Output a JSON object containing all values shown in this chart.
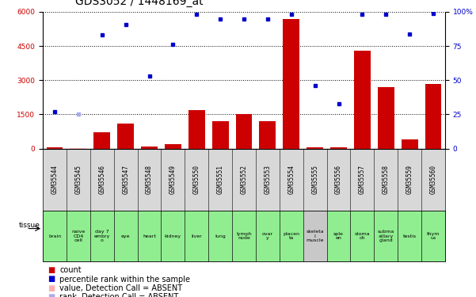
{
  "title": "GDS3052 / 1448169_at",
  "samples": [
    "GSM35544",
    "GSM35545",
    "GSM35546",
    "GSM35547",
    "GSM35548",
    "GSM35549",
    "GSM35550",
    "GSM35551",
    "GSM35552",
    "GSM35553",
    "GSM35554",
    "GSM35555",
    "GSM35556",
    "GSM35557",
    "GSM35558",
    "GSM35559",
    "GSM35560"
  ],
  "tissues": [
    "brain",
    "naive\nCD4\ncell",
    "day 7\nembry\no",
    "eye",
    "heart",
    "kidney",
    "liver",
    "lung",
    "lymph\nnode",
    "ovar\ny",
    "placen\nta",
    "skeleta\nl\nmuscle",
    "sple\nen",
    "stoma\nch",
    "subma\nxillary\ngland",
    "testis",
    "thym\nus"
  ],
  "tissue_colors": [
    "#90ee90",
    "#90ee90",
    "#90ee90",
    "#90ee90",
    "#90ee90",
    "#90ee90",
    "#90ee90",
    "#90ee90",
    "#90ee90",
    "#90ee90",
    "#90ee90",
    "#c8c8c8",
    "#90ee90",
    "#90ee90",
    "#90ee90",
    "#90ee90",
    "#90ee90"
  ],
  "count_values": [
    50,
    30,
    700,
    1100,
    100,
    200,
    1700,
    1200,
    1500,
    1200,
    5700,
    60,
    50,
    4300,
    2700,
    400,
    2850
  ],
  "rank_pct": [
    27,
    25,
    83,
    91,
    53,
    76,
    98,
    95,
    95,
    95,
    98,
    46,
    33,
    98,
    98,
    84,
    99
  ],
  "absent_count": [
    false,
    true,
    false,
    false,
    false,
    false,
    false,
    false,
    false,
    false,
    false,
    false,
    false,
    false,
    false,
    false,
    false
  ],
  "absent_rank": [
    false,
    true,
    false,
    false,
    false,
    false,
    false,
    false,
    false,
    false,
    false,
    false,
    false,
    false,
    false,
    false,
    false
  ],
  "ylim_left": [
    0,
    6000
  ],
  "ylim_right": [
    0,
    100
  ],
  "yticks_left": [
    0,
    1500,
    3000,
    4500,
    6000
  ],
  "yticks_right": [
    0,
    25,
    50,
    75,
    100
  ],
  "bar_color": "#cc0000",
  "dot_color": "#0000cc",
  "absent_bar_color": "#ffb0b0",
  "absent_dot_color": "#aaaaee",
  "grid_color": "#000000",
  "left_axis_color": "#cc0000",
  "right_axis_color": "#0000cc",
  "title_fontsize": 10,
  "tick_fontsize": 6.5,
  "tissue_fontsize": 5.5,
  "legend_fontsize": 7
}
